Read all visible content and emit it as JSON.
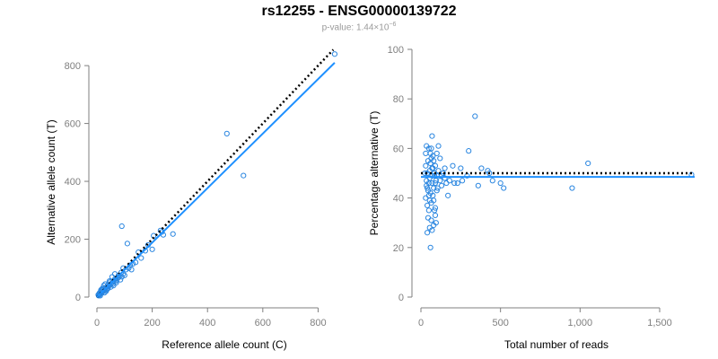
{
  "title": "rs12255 - ENSG00000139722",
  "subtitle": {
    "prefix": "p-value: 1.44×10",
    "exponent": "−6"
  },
  "colors": {
    "points": "#2a86e0",
    "fit_line": "#1e90ff",
    "reference_line": "#000000",
    "axis": "#7f7f7f"
  },
  "chart_data": [
    {
      "type": "scatter",
      "xlabel": "Reference allele count (C)",
      "ylabel": "Alternative allele count (T)",
      "xlim": [
        0,
        870
      ],
      "ylim": [
        0,
        850
      ],
      "x_ticks": [
        0,
        200,
        400,
        600,
        800
      ],
      "x_tick_labels": [
        "0",
        "200",
        "400",
        "600",
        "800"
      ],
      "y_ticks": [
        0,
        200,
        400,
        600,
        800
      ],
      "y_tick_labels": [
        "0",
        "200",
        "400",
        "600",
        "800"
      ],
      "reference_line": {
        "style": "dotted",
        "from": [
          0,
          0
        ],
        "to": [
          855,
          855
        ]
      },
      "fit_line": {
        "style": "solid",
        "from": [
          0,
          0
        ],
        "to": [
          860,
          810
        ]
      },
      "points": [
        [
          860,
          840
        ],
        [
          470,
          565
        ],
        [
          530,
          420
        ],
        [
          90,
          245
        ],
        [
          275,
          218
        ],
        [
          205,
          212
        ],
        [
          185,
          180
        ],
        [
          200,
          165
        ],
        [
          150,
          155
        ],
        [
          160,
          135
        ],
        [
          140,
          120
        ],
        [
          120,
          110
        ],
        [
          110,
          185
        ],
        [
          125,
          95
        ],
        [
          95,
          80
        ],
        [
          100,
          75
        ],
        [
          80,
          70
        ],
        [
          70,
          60
        ],
        [
          65,
          62
        ],
        [
          60,
          55
        ],
        [
          55,
          50
        ],
        [
          50,
          45
        ],
        [
          45,
          40
        ],
        [
          40,
          42
        ],
        [
          35,
          35
        ],
        [
          30,
          30
        ],
        [
          28,
          25
        ],
        [
          25,
          22
        ],
        [
          22,
          20
        ],
        [
          20,
          18
        ],
        [
          18,
          15
        ],
        [
          15,
          14
        ],
        [
          12,
          10
        ],
        [
          10,
          9
        ],
        [
          8,
          7
        ],
        [
          6,
          5
        ],
        [
          30,
          45
        ],
        [
          25,
          40
        ],
        [
          40,
          30
        ],
        [
          50,
          35
        ],
        [
          60,
          40
        ],
        [
          70,
          50
        ],
        [
          75,
          65
        ],
        [
          85,
          60
        ],
        [
          20,
          30
        ],
        [
          15,
          25
        ],
        [
          10,
          15
        ],
        [
          35,
          25
        ],
        [
          45,
          55
        ],
        [
          55,
          70
        ],
        [
          65,
          80
        ],
        [
          90,
          70
        ],
        [
          105,
          95
        ],
        [
          115,
          100
        ],
        [
          130,
          115
        ],
        [
          175,
          160
        ],
        [
          235,
          225
        ],
        [
          240,
          215
        ],
        [
          230,
          230
        ],
        [
          42,
          38
        ],
        [
          38,
          28
        ],
        [
          33,
          20
        ],
        [
          27,
          15
        ],
        [
          24,
          30
        ],
        [
          18,
          24
        ],
        [
          14,
          20
        ],
        [
          12,
          5
        ],
        [
          8,
          12
        ],
        [
          5,
          8
        ],
        [
          48,
          52
        ],
        [
          58,
          45
        ],
        [
          68,
          55
        ],
        [
          78,
          75
        ],
        [
          88,
          85
        ],
        [
          95,
          100
        ]
      ]
    },
    {
      "type": "scatter",
      "xlabel": "Total number of reads",
      "ylabel": "Percentage alternative (T)",
      "xlim": [
        0,
        1720
      ],
      "ylim": [
        0,
        100
      ],
      "x_ticks": [
        0,
        500,
        1000,
        1500
      ],
      "x_tick_labels": [
        "0",
        "500",
        "1,000",
        "1,500"
      ],
      "y_ticks": [
        0,
        20,
        40,
        60,
        80,
        100
      ],
      "y_tick_labels": [
        "0",
        "20",
        "40",
        "60",
        "80",
        "100"
      ],
      "reference_line": {
        "style": "dotted",
        "y": 50
      },
      "fit_line": {
        "style": "solid",
        "y": 48.5
      },
      "points": [
        [
          1700,
          49.4
        ],
        [
          1050,
          54
        ],
        [
          950,
          44
        ],
        [
          340,
          73
        ],
        [
          300,
          59
        ],
        [
          430,
          50
        ],
        [
          500,
          46
        ],
        [
          520,
          44
        ],
        [
          360,
          45
        ],
        [
          450,
          47
        ],
        [
          380,
          52
        ],
        [
          420,
          51
        ],
        [
          250,
          52
        ],
        [
          200,
          53
        ],
        [
          150,
          48
        ],
        [
          230,
          46
        ],
        [
          110,
          61
        ],
        [
          120,
          56
        ],
        [
          130,
          45
        ],
        [
          170,
          41
        ],
        [
          140,
          50
        ],
        [
          100,
          58
        ],
        [
          180,
          47
        ],
        [
          210,
          46
        ],
        [
          260,
          47
        ],
        [
          290,
          49
        ],
        [
          70,
          65
        ],
        [
          60,
          20
        ],
        [
          55,
          28
        ],
        [
          40,
          26
        ],
        [
          45,
          32
        ],
        [
          50,
          35
        ],
        [
          30,
          40
        ],
        [
          35,
          45
        ],
        [
          40,
          50
        ],
        [
          45,
          55
        ],
        [
          50,
          60
        ],
        [
          55,
          48
        ],
        [
          60,
          42
        ],
        [
          65,
          38
        ],
        [
          70,
          52
        ],
        [
          75,
          57
        ],
        [
          80,
          44
        ],
        [
          85,
          49
        ],
        [
          90,
          53
        ],
        [
          95,
          47
        ],
        [
          30,
          58
        ],
        [
          35,
          61
        ],
        [
          40,
          37
        ],
        [
          45,
          43
        ],
        [
          50,
          46
        ],
        [
          55,
          51
        ],
        [
          60,
          54
        ],
        [
          65,
          56
        ],
        [
          70,
          46
        ],
        [
          75,
          41
        ],
        [
          80,
          39
        ],
        [
          85,
          35
        ],
        [
          90,
          33
        ],
        [
          95,
          30
        ],
        [
          100,
          49
        ],
        [
          105,
          44
        ],
        [
          25,
          50
        ],
        [
          30,
          53
        ],
        [
          35,
          47
        ],
        [
          40,
          44
        ],
        [
          50,
          41
        ],
        [
          55,
          39
        ],
        [
          60,
          58
        ],
        [
          65,
          60
        ],
        [
          70,
          49
        ],
        [
          75,
          52
        ],
        [
          80,
          55
        ],
        [
          85,
          50
        ],
        [
          90,
          46
        ],
        [
          100,
          43
        ],
        [
          110,
          51
        ],
        [
          120,
          47
        ],
        [
          130,
          49
        ],
        [
          150,
          52
        ],
        [
          160,
          46
        ],
        [
          70,
          27
        ],
        [
          65,
          31
        ],
        [
          80,
          29
        ],
        [
          90,
          36
        ]
      ]
    }
  ]
}
